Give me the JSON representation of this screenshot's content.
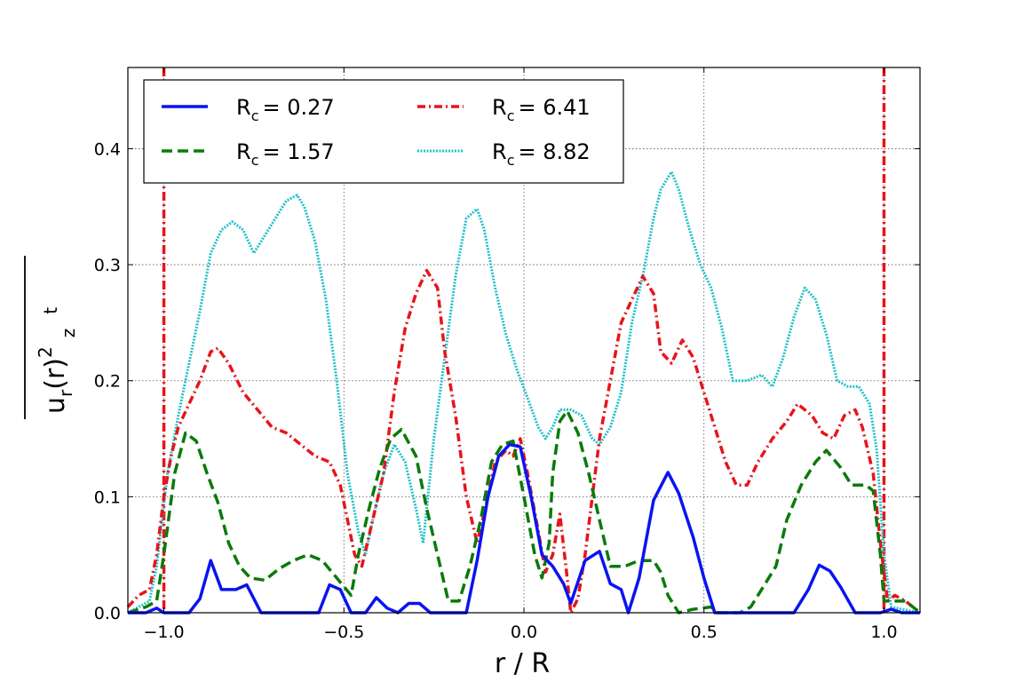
{
  "chart_data": {
    "type": "line",
    "xlabel": "r / R",
    "ylabel": {
      "base": "u",
      "sub": "r",
      "mid": "(r)",
      "sup": "2",
      "z": "z",
      "t": "t"
    },
    "xlim": [
      -1.1,
      1.1
    ],
    "ylim": [
      0.0,
      0.47
    ],
    "grid": true,
    "legend_position": "top-left",
    "x_ticks": [
      {
        "value": -1.0,
        "label": "−1.0"
      },
      {
        "value": -0.5,
        "label": "−0.5"
      },
      {
        "value": 0.0,
        "label": "0.0"
      },
      {
        "value": 0.5,
        "label": "0.5"
      },
      {
        "value": 1.0,
        "label": "1.0"
      }
    ],
    "y_ticks": [
      {
        "value": 0.0,
        "label": "0.0"
      },
      {
        "value": 0.1,
        "label": "0.1"
      },
      {
        "value": 0.2,
        "label": "0.2"
      },
      {
        "value": 0.3,
        "label": "0.3"
      },
      {
        "value": 0.4,
        "label": "0.4"
      }
    ],
    "vertical_lines": [
      {
        "x": -1.0,
        "color": "#e8141a"
      },
      {
        "x": 1.0,
        "color": "#e8141a"
      }
    ],
    "series": [
      {
        "name_base": "R",
        "name_sub": "c",
        "name_value": "= 0.27",
        "color": "#0a14f0",
        "style": "solid",
        "width": 3.5,
        "points": [
          [
            -1.1,
            0.0
          ],
          [
            -1.05,
            0.0
          ],
          [
            -1.02,
            0.004
          ],
          [
            -1.0,
            0.0
          ],
          [
            -0.95,
            0.0
          ],
          [
            -0.93,
            0.0
          ],
          [
            -0.9,
            0.012
          ],
          [
            -0.87,
            0.045
          ],
          [
            -0.84,
            0.02
          ],
          [
            -0.8,
            0.02
          ],
          [
            -0.77,
            0.024
          ],
          [
            -0.73,
            0.0
          ],
          [
            -0.6,
            0.0
          ],
          [
            -0.57,
            0.0
          ],
          [
            -0.54,
            0.024
          ],
          [
            -0.51,
            0.02
          ],
          [
            -0.48,
            0.0
          ],
          [
            -0.44,
            0.0
          ],
          [
            -0.41,
            0.013
          ],
          [
            -0.38,
            0.004
          ],
          [
            -0.35,
            0.0
          ],
          [
            -0.32,
            0.008
          ],
          [
            -0.29,
            0.008
          ],
          [
            -0.26,
            0.0
          ],
          [
            -0.16,
            0.0
          ],
          [
            -0.13,
            0.045
          ],
          [
            -0.1,
            0.1
          ],
          [
            -0.07,
            0.135
          ],
          [
            -0.04,
            0.145
          ],
          [
            -0.01,
            0.143
          ],
          [
            0.02,
            0.1
          ],
          [
            0.05,
            0.05
          ],
          [
            0.08,
            0.04
          ],
          [
            0.11,
            0.025
          ],
          [
            0.13,
            0.008
          ],
          [
            0.17,
            0.045
          ],
          [
            0.21,
            0.053
          ],
          [
            0.24,
            0.025
          ],
          [
            0.27,
            0.02
          ],
          [
            0.29,
            0.0
          ],
          [
            0.32,
            0.03
          ],
          [
            0.36,
            0.097
          ],
          [
            0.4,
            0.121
          ],
          [
            0.43,
            0.103
          ],
          [
            0.47,
            0.065
          ],
          [
            0.5,
            0.03
          ],
          [
            0.53,
            0.0
          ],
          [
            0.7,
            0.0
          ],
          [
            0.75,
            0.0
          ],
          [
            0.79,
            0.02
          ],
          [
            0.82,
            0.041
          ],
          [
            0.85,
            0.036
          ],
          [
            0.88,
            0.022
          ],
          [
            0.92,
            0.0
          ],
          [
            0.99,
            0.0
          ],
          [
            1.02,
            0.003
          ],
          [
            1.05,
            0.0
          ],
          [
            1.1,
            0.0
          ]
        ]
      },
      {
        "name_base": "R",
        "name_sub": "c",
        "name_value": "= 1.57",
        "color": "#0a7a0a",
        "style": "dashed",
        "width": 3.5,
        "points": [
          [
            -1.1,
            0.0
          ],
          [
            -1.05,
            0.005
          ],
          [
            -1.02,
            0.01
          ],
          [
            -1.0,
            0.05
          ],
          [
            -0.97,
            0.12
          ],
          [
            -0.94,
            0.155
          ],
          [
            -0.91,
            0.148
          ],
          [
            -0.88,
            0.12
          ],
          [
            -0.85,
            0.095
          ],
          [
            -0.82,
            0.06
          ],
          [
            -0.79,
            0.04
          ],
          [
            -0.76,
            0.03
          ],
          [
            -0.72,
            0.028
          ],
          [
            -0.68,
            0.038
          ],
          [
            -0.64,
            0.045
          ],
          [
            -0.6,
            0.05
          ],
          [
            -0.56,
            0.045
          ],
          [
            -0.52,
            0.03
          ],
          [
            -0.48,
            0.015
          ],
          [
            -0.46,
            0.05
          ],
          [
            -0.43,
            0.09
          ],
          [
            -0.4,
            0.125
          ],
          [
            -0.37,
            0.15
          ],
          [
            -0.34,
            0.158
          ],
          [
            -0.3,
            0.135
          ],
          [
            -0.27,
            0.09
          ],
          [
            -0.24,
            0.05
          ],
          [
            -0.21,
            0.01
          ],
          [
            -0.18,
            0.01
          ],
          [
            -0.15,
            0.04
          ],
          [
            -0.12,
            0.08
          ],
          [
            -0.09,
            0.13
          ],
          [
            -0.06,
            0.145
          ],
          [
            -0.03,
            0.148
          ],
          [
            0.0,
            0.1
          ],
          [
            0.03,
            0.05
          ],
          [
            0.05,
            0.03
          ],
          [
            0.07,
            0.06
          ],
          [
            0.08,
            0.12
          ],
          [
            0.1,
            0.165
          ],
          [
            0.12,
            0.174
          ],
          [
            0.15,
            0.155
          ],
          [
            0.18,
            0.12
          ],
          [
            0.21,
            0.08
          ],
          [
            0.24,
            0.04
          ],
          [
            0.28,
            0.04
          ],
          [
            0.32,
            0.045
          ],
          [
            0.36,
            0.045
          ],
          [
            0.38,
            0.035
          ],
          [
            0.4,
            0.015
          ],
          [
            0.43,
            0.0
          ],
          [
            0.47,
            0.003
          ],
          [
            0.52,
            0.005
          ],
          [
            0.54,
            0.0
          ],
          [
            0.6,
            0.0
          ],
          [
            0.63,
            0.005
          ],
          [
            0.66,
            0.02
          ],
          [
            0.7,
            0.04
          ],
          [
            0.73,
            0.08
          ],
          [
            0.77,
            0.11
          ],
          [
            0.81,
            0.13
          ],
          [
            0.84,
            0.14
          ],
          [
            0.88,
            0.125
          ],
          [
            0.91,
            0.11
          ],
          [
            0.95,
            0.11
          ],
          [
            0.97,
            0.105
          ],
          [
            0.99,
            0.05
          ],
          [
            1.0,
            0.01
          ],
          [
            1.03,
            0.01
          ],
          [
            1.06,
            0.01
          ],
          [
            1.1,
            0.0
          ]
        ]
      },
      {
        "name_base": "R",
        "name_sub": "c",
        "name_value": "= 6.41",
        "color": "#e8141a",
        "style": "dashdot",
        "width": 3.5,
        "points": [
          [
            -1.1,
            0.005
          ],
          [
            -1.07,
            0.015
          ],
          [
            -1.04,
            0.02
          ],
          [
            -1.02,
            0.05
          ],
          [
            -1.0,
            0.1
          ],
          [
            -0.98,
            0.135
          ],
          [
            -0.96,
            0.16
          ],
          [
            -0.93,
            0.18
          ],
          [
            -0.9,
            0.2
          ],
          [
            -0.87,
            0.225
          ],
          [
            -0.85,
            0.228
          ],
          [
            -0.82,
            0.215
          ],
          [
            -0.78,
            0.19
          ],
          [
            -0.74,
            0.175
          ],
          [
            -0.7,
            0.16
          ],
          [
            -0.66,
            0.155
          ],
          [
            -0.62,
            0.145
          ],
          [
            -0.58,
            0.135
          ],
          [
            -0.54,
            0.13
          ],
          [
            -0.51,
            0.11
          ],
          [
            -0.49,
            0.08
          ],
          [
            -0.47,
            0.05
          ],
          [
            -0.45,
            0.04
          ],
          [
            -0.42,
            0.08
          ],
          [
            -0.39,
            0.12
          ],
          [
            -0.36,
            0.19
          ],
          [
            -0.33,
            0.245
          ],
          [
            -0.3,
            0.275
          ],
          [
            -0.27,
            0.295
          ],
          [
            -0.24,
            0.28
          ],
          [
            -0.22,
            0.225
          ],
          [
            -0.19,
            0.17
          ],
          [
            -0.16,
            0.1
          ],
          [
            -0.13,
            0.06
          ],
          [
            -0.1,
            0.1
          ],
          [
            -0.08,
            0.13
          ],
          [
            -0.05,
            0.14
          ],
          [
            -0.03,
            0.135
          ],
          [
            -0.01,
            0.15
          ],
          [
            0.01,
            0.12
          ],
          [
            0.04,
            0.07
          ],
          [
            0.06,
            0.035
          ],
          [
            0.08,
            0.05
          ],
          [
            0.1,
            0.085
          ],
          [
            0.12,
            0.03
          ],
          [
            0.13,
            0.0
          ],
          [
            0.15,
            0.012
          ],
          [
            0.17,
            0.05
          ],
          [
            0.19,
            0.1
          ],
          [
            0.21,
            0.15
          ],
          [
            0.24,
            0.2
          ],
          [
            0.27,
            0.25
          ],
          [
            0.3,
            0.27
          ],
          [
            0.33,
            0.29
          ],
          [
            0.36,
            0.275
          ],
          [
            0.38,
            0.225
          ],
          [
            0.41,
            0.215
          ],
          [
            0.44,
            0.235
          ],
          [
            0.47,
            0.22
          ],
          [
            0.5,
            0.19
          ],
          [
            0.53,
            0.16
          ],
          [
            0.56,
            0.13
          ],
          [
            0.59,
            0.11
          ],
          [
            0.62,
            0.11
          ],
          [
            0.65,
            0.13
          ],
          [
            0.69,
            0.15
          ],
          [
            0.73,
            0.165
          ],
          [
            0.76,
            0.18
          ],
          [
            0.8,
            0.17
          ],
          [
            0.83,
            0.155
          ],
          [
            0.86,
            0.15
          ],
          [
            0.89,
            0.17
          ],
          [
            0.92,
            0.175
          ],
          [
            0.94,
            0.16
          ],
          [
            0.97,
            0.12
          ],
          [
            0.99,
            0.06
          ],
          [
            1.01,
            0.01
          ],
          [
            1.03,
            0.015
          ],
          [
            1.06,
            0.01
          ],
          [
            1.1,
            0.0
          ]
        ]
      },
      {
        "name_base": "R",
        "name_sub": "c",
        "name_value": "= 8.82",
        "color": "#22c0c8",
        "style": "dotted",
        "width": 3.0,
        "points": [
          [
            -1.1,
            0.0
          ],
          [
            -1.07,
            0.005
          ],
          [
            -1.04,
            0.01
          ],
          [
            -1.02,
            0.04
          ],
          [
            -0.99,
            0.12
          ],
          [
            -0.96,
            0.17
          ],
          [
            -0.93,
            0.215
          ],
          [
            -0.9,
            0.26
          ],
          [
            -0.87,
            0.31
          ],
          [
            -0.84,
            0.33
          ],
          [
            -0.81,
            0.337
          ],
          [
            -0.78,
            0.33
          ],
          [
            -0.75,
            0.31
          ],
          [
            -0.72,
            0.325
          ],
          [
            -0.69,
            0.34
          ],
          [
            -0.66,
            0.355
          ],
          [
            -0.63,
            0.36
          ],
          [
            -0.61,
            0.35
          ],
          [
            -0.58,
            0.32
          ],
          [
            -0.55,
            0.27
          ],
          [
            -0.52,
            0.2
          ],
          [
            -0.49,
            0.12
          ],
          [
            -0.46,
            0.07
          ],
          [
            -0.44,
            0.05
          ],
          [
            -0.42,
            0.08
          ],
          [
            -0.39,
            0.12
          ],
          [
            -0.36,
            0.145
          ],
          [
            -0.33,
            0.13
          ],
          [
            -0.3,
            0.09
          ],
          [
            -0.28,
            0.06
          ],
          [
            -0.25,
            0.15
          ],
          [
            -0.22,
            0.22
          ],
          [
            -0.19,
            0.29
          ],
          [
            -0.16,
            0.34
          ],
          [
            -0.13,
            0.348
          ],
          [
            -0.11,
            0.33
          ],
          [
            -0.08,
            0.28
          ],
          [
            -0.05,
            0.24
          ],
          [
            -0.02,
            0.21
          ],
          [
            0.01,
            0.185
          ],
          [
            0.04,
            0.16
          ],
          [
            0.06,
            0.15
          ],
          [
            0.08,
            0.16
          ],
          [
            0.1,
            0.175
          ],
          [
            0.13,
            0.175
          ],
          [
            0.16,
            0.17
          ],
          [
            0.19,
            0.15
          ],
          [
            0.21,
            0.145
          ],
          [
            0.24,
            0.16
          ],
          [
            0.27,
            0.19
          ],
          [
            0.3,
            0.25
          ],
          [
            0.33,
            0.29
          ],
          [
            0.36,
            0.34
          ],
          [
            0.38,
            0.365
          ],
          [
            0.41,
            0.38
          ],
          [
            0.43,
            0.365
          ],
          [
            0.46,
            0.33
          ],
          [
            0.49,
            0.3
          ],
          [
            0.52,
            0.28
          ],
          [
            0.55,
            0.245
          ],
          [
            0.58,
            0.2
          ],
          [
            0.62,
            0.2
          ],
          [
            0.66,
            0.205
          ],
          [
            0.69,
            0.195
          ],
          [
            0.72,
            0.22
          ],
          [
            0.75,
            0.255
          ],
          [
            0.78,
            0.28
          ],
          [
            0.81,
            0.27
          ],
          [
            0.84,
            0.24
          ],
          [
            0.87,
            0.2
          ],
          [
            0.9,
            0.195
          ],
          [
            0.93,
            0.195
          ],
          [
            0.96,
            0.18
          ],
          [
            0.98,
            0.14
          ],
          [
            1.0,
            0.05
          ],
          [
            1.02,
            0.005
          ],
          [
            1.05,
            0.003
          ],
          [
            1.1,
            0.0
          ]
        ]
      }
    ]
  }
}
